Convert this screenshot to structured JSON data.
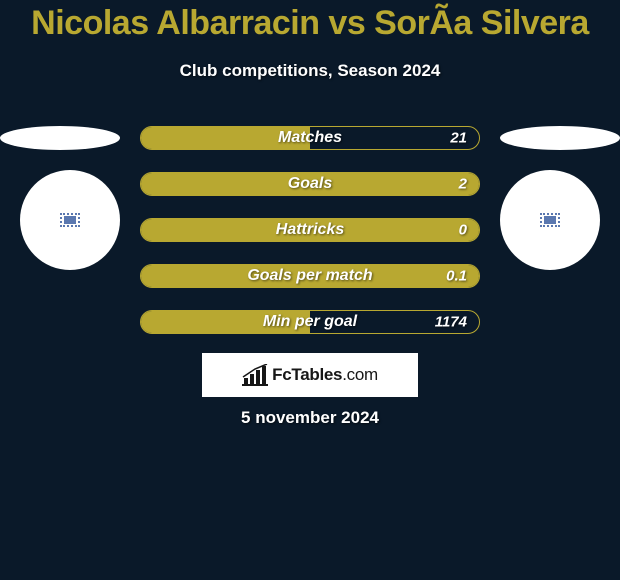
{
  "colors": {
    "page_bg": "#0a1929",
    "title_color": "#b8a831",
    "text_color": "#ffffff",
    "bar_fill": "#b8a831",
    "bar_border": "#b8a831",
    "ellipse_bg": "#ffffff",
    "circle_bg": "#ffffff",
    "logo_bg": "#ffffff",
    "logo_text": "#171717"
  },
  "title": "Nicolas Albarracin vs SorÃ­a Silvera",
  "subtitle": "Club competitions, Season 2024",
  "date_line": "5 november 2024",
  "logo": {
    "brand": "FcTables",
    "tld": ".com"
  },
  "bars": [
    {
      "label": "Matches",
      "value": "21",
      "fill_pct": 50
    },
    {
      "label": "Goals",
      "value": "2",
      "fill_pct": 100
    },
    {
      "label": "Hattricks",
      "value": "0",
      "fill_pct": 100
    },
    {
      "label": "Goals per match",
      "value": "0.1",
      "fill_pct": 100
    },
    {
      "label": "Min per goal",
      "value": "1174",
      "fill_pct": 50
    }
  ]
}
